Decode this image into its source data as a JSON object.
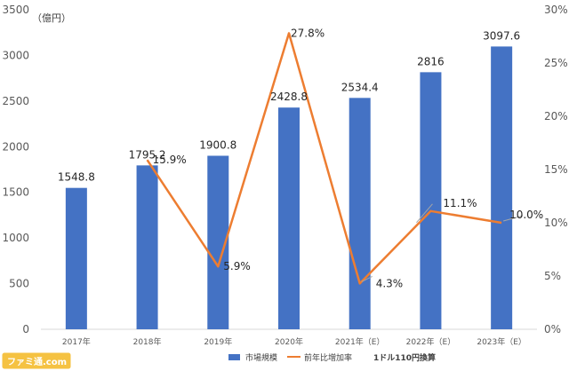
{
  "chart_data": {
    "type": "bar",
    "categories": [
      "2017年",
      "2018年",
      "2019年",
      "2020年",
      "2021年（E）",
      "2022年（E）",
      "2023年（E）"
    ],
    "series": [
      {
        "name": "市場規模",
        "type": "bar",
        "axis": "left",
        "color": "#4472C4",
        "values": [
          1548.8,
          1795.2,
          1900.8,
          2428.8,
          2534.4,
          2816,
          3097.6
        ],
        "labels": [
          "1548.8",
          "1795.2",
          "1900.8",
          "2428.8",
          "2534.4",
          "2816",
          "3097.6"
        ]
      },
      {
        "name": "前年比増加率",
        "type": "line",
        "axis": "right",
        "color": "#ED7D31",
        "values": [
          null,
          15.9,
          5.9,
          27.8,
          4.3,
          11.1,
          10.0
        ],
        "labels": [
          "",
          "15.9%",
          "5.9%",
          "27.8%",
          "4.3%",
          "11.1%",
          "10.0%"
        ]
      }
    ],
    "yunit": "（億円）",
    "ylim": [
      0,
      3500
    ],
    "yticks": [
      "0",
      "500",
      "1000",
      "1500",
      "2000",
      "2500",
      "3000",
      "3500"
    ],
    "y2lim": [
      0,
      30
    ],
    "y2ticks": [
      "0%",
      "5%",
      "10%",
      "15%",
      "20%",
      "25%",
      "30%"
    ],
    "legend_position": "bottom",
    "note": "1ドル110円換算",
    "grid": false
  },
  "watermark": "ファミ通.com"
}
